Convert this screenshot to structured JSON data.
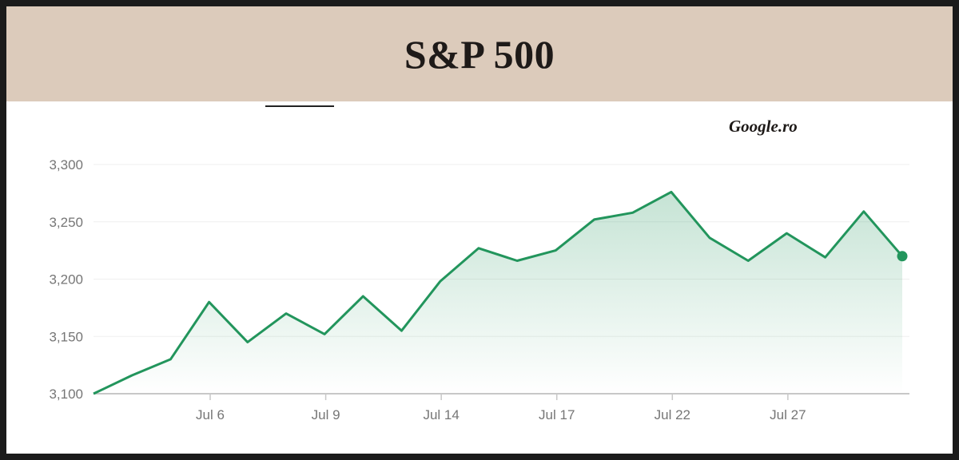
{
  "header": {
    "title": "S&P 500"
  },
  "source_label": "Google.ro",
  "colors": {
    "line": "#22955c",
    "header_bg": "#dccbbb",
    "frame": "#1b1b1b"
  },
  "chart_data": {
    "type": "area",
    "title": "S&P 500",
    "xlabel": "",
    "ylabel": "",
    "ylim": [
      3100,
      3300
    ],
    "grid": true,
    "y_ticks": [
      {
        "value": 3100,
        "label": "3,100"
      },
      {
        "value": 3150,
        "label": "3,150"
      },
      {
        "value": 3200,
        "label": "3,200"
      },
      {
        "value": 3250,
        "label": "3,250"
      },
      {
        "value": 3300,
        "label": "3,300"
      }
    ],
    "x_ticks": [
      "Jul 6",
      "Jul 9",
      "Jul 14",
      "Jul 17",
      "Jul 22",
      "Jul 27"
    ],
    "series": [
      {
        "values": [
          3100,
          3116,
          3130,
          3180,
          3145,
          3170,
          3152,
          3185,
          3155,
          3198,
          3227,
          3216,
          3225,
          3252,
          3258,
          3276,
          3236,
          3216,
          3240,
          3219,
          3259,
          3220
        ]
      }
    ]
  }
}
